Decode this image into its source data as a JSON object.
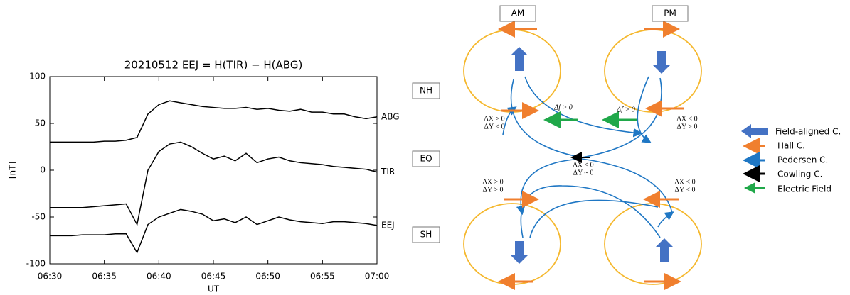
{
  "chart_data": {
    "type": "line",
    "title": "20210512    EEJ = H(TIR) − H(ABG)",
    "x_label": "UT",
    "y_label": "[nT]",
    "x": [
      "06:30",
      "06:31",
      "06:32",
      "06:33",
      "06:34",
      "06:35",
      "06:36",
      "06:37",
      "06:38",
      "06:39",
      "06:40",
      "06:41",
      "06:42",
      "06:43",
      "06:44",
      "06:45",
      "06:46",
      "06:47",
      "06:48",
      "06:49",
      "06:50",
      "06:51",
      "06:52",
      "06:53",
      "06:54",
      "06:55",
      "06:56",
      "06:57",
      "06:58",
      "06:59",
      "07:00"
    ],
    "series": [
      {
        "name": "ABG",
        "color": "#000000",
        "values": [
          30,
          30,
          30,
          30,
          30,
          31,
          31,
          32,
          35,
          60,
          70,
          74,
          72,
          70,
          68,
          67,
          66,
          66,
          67,
          65,
          66,
          64,
          63,
          65,
          62,
          62,
          60,
          60,
          57,
          55,
          57
        ]
      },
      {
        "name": "TIR",
        "color": "#000000",
        "values": [
          -40,
          -40,
          -40,
          -40,
          -39,
          -38,
          -37,
          -36,
          -58,
          0,
          20,
          28,
          30,
          25,
          18,
          12,
          15,
          10,
          18,
          8,
          12,
          14,
          10,
          8,
          7,
          6,
          4,
          3,
          2,
          1,
          -2
        ]
      },
      {
        "name": "EEJ",
        "color": "#000000",
        "values": [
          -70,
          -70,
          -70,
          -69,
          -69,
          -69,
          -68,
          -68,
          -88,
          -58,
          -50,
          -46,
          -42,
          -44,
          -47,
          -54,
          -52,
          -56,
          -50,
          -58,
          -54,
          -50,
          -53,
          -55,
          -56,
          -57,
          -55,
          -55,
          -56,
          -57,
          -59
        ]
      }
    ],
    "xlim": [
      "06:30",
      "07:00"
    ],
    "xticks": [
      "06:30",
      "06:35",
      "06:40",
      "06:45",
      "06:50",
      "06:55",
      "07:00"
    ],
    "ylim": [
      -100,
      100
    ],
    "yticks": [
      -100,
      -50,
      0,
      50,
      100
    ]
  },
  "diagram": {
    "boxes": [
      "AM",
      "PM",
      "NH",
      "EQ",
      "SH"
    ],
    "field_labels": [
      "Δf > 0",
      "Δf > 0"
    ],
    "delta_labels": [
      {
        "dx": "ΔX > 0",
        "dy": "ΔY < 0"
      },
      {
        "dx": "ΔX < 0",
        "dy": "ΔY > 0"
      },
      {
        "dx": "ΔX < 0",
        "dy": "ΔY ~ 0"
      },
      {
        "dx": "ΔX > 0",
        "dy": "ΔY > 0"
      },
      {
        "dx": "ΔX < 0",
        "dy": "ΔY < 0"
      }
    ],
    "legend": [
      "Field-aligned C.",
      "Hall C.",
      "Pedersen C.",
      "Cowling C.",
      "Electric Field"
    ]
  }
}
